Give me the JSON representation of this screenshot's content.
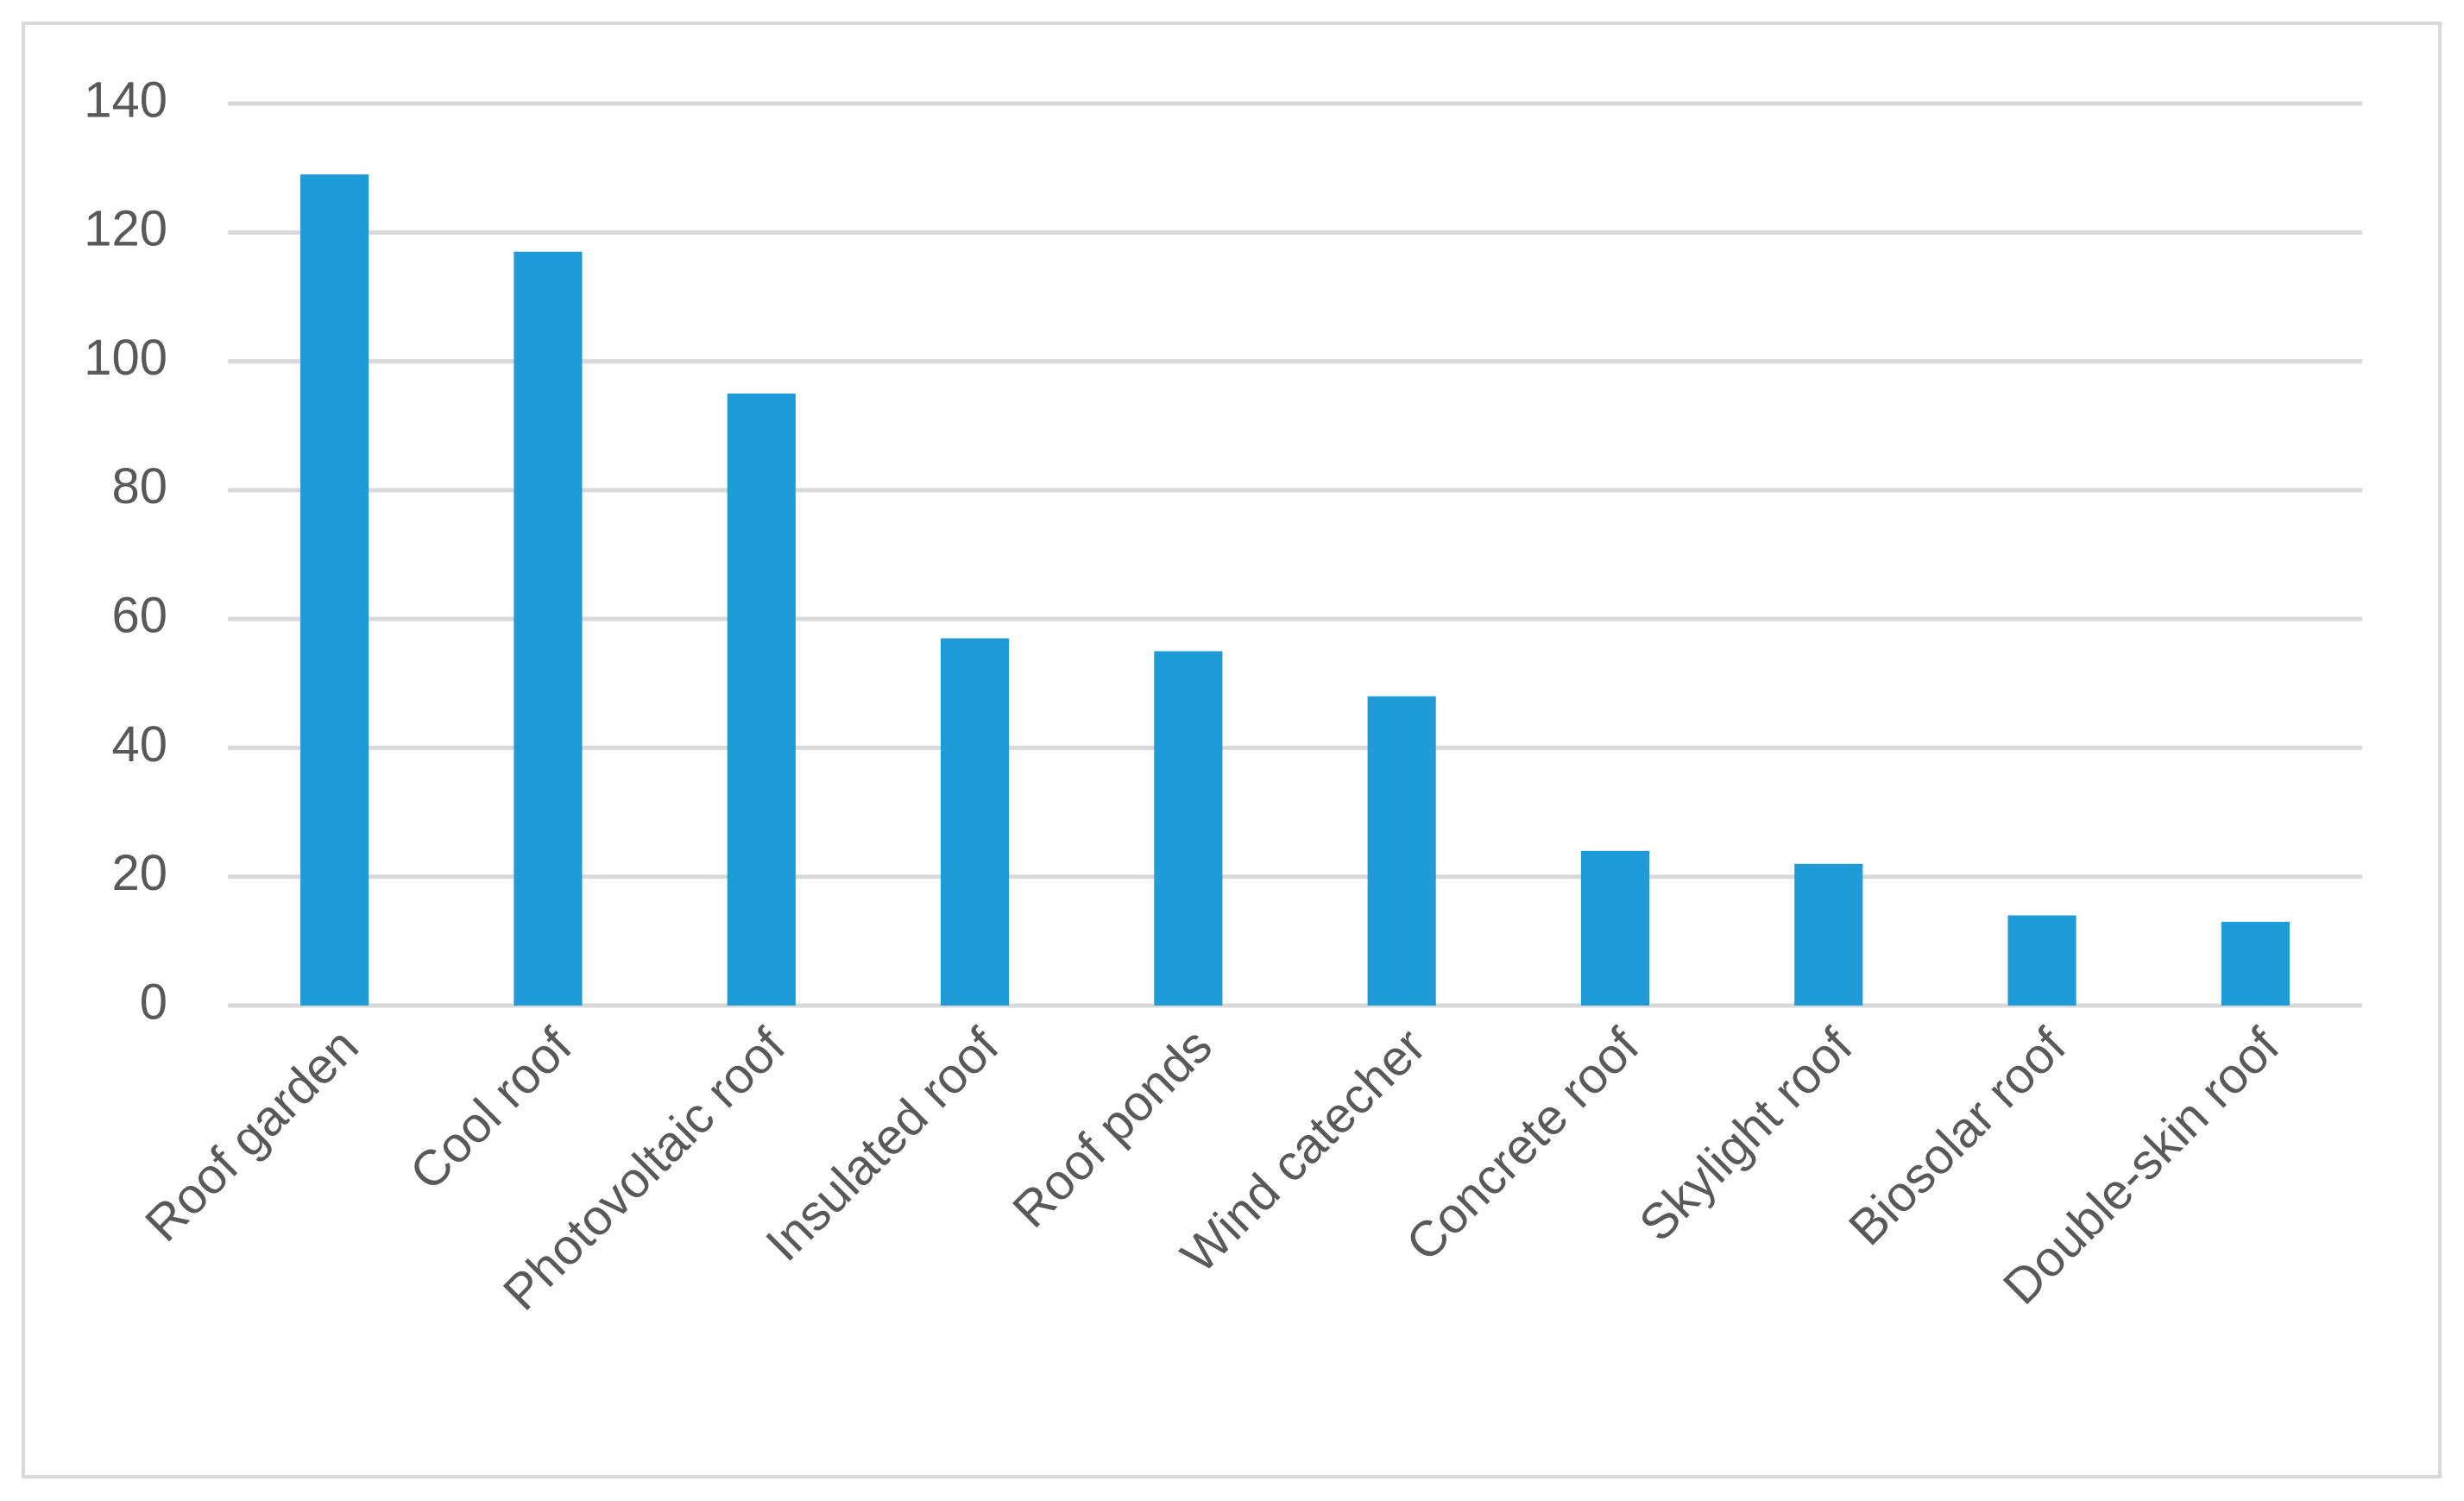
{
  "chart_data": {
    "type": "bar",
    "categories": [
      "Roof garden",
      "Cool roof",
      "Photovoltaic roof",
      "Insulated roof",
      "Roof ponds",
      "Wind catecher",
      "Concrete roof",
      "Skylight roof",
      "Biosolar roof",
      "Double-skin roof"
    ],
    "values": [
      129,
      117,
      95,
      57,
      55,
      48,
      24,
      22,
      14,
      13
    ],
    "color": "#1f9bd7",
    "ylim": [
      0,
      140
    ],
    "yticks": [
      0,
      20,
      40,
      60,
      80,
      100,
      120,
      140
    ],
    "grid": true
  }
}
